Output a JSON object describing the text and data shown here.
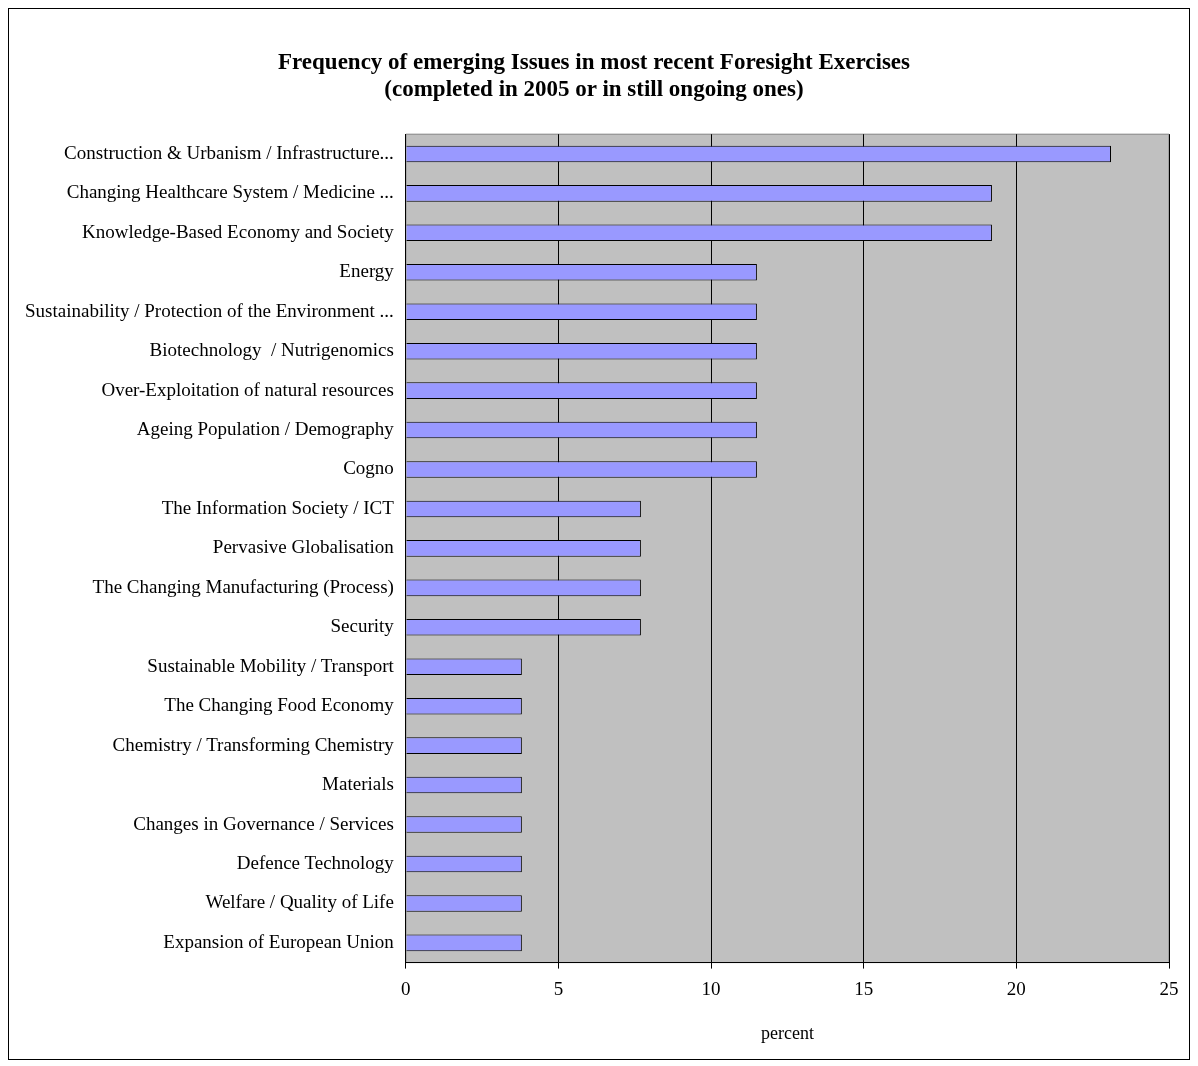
{
  "chart_data": {
    "type": "bar",
    "orientation": "horizontal",
    "title": "Frequency of emerging Issues in most recent Foresight Exercises\n(completed in 2005 or in still ongoing ones)",
    "xlabel": "percent",
    "categories": [
      "Construction & Urbanism / Infrastructure...",
      "Changing Healthcare System / Medicine ...",
      "Knowledge-Based Economy and Society",
      "Energy",
      "Sustainability / Protection of the Environment ...",
      "Biotechnology  / Nutrigenomics",
      "Over-Exploitation of natural resources",
      "Ageing Population / Demography",
      "Cogno",
      "The Information Society / ICT",
      "Pervasive Globalisation",
      "The Changing Manufacturing (Process)",
      "Security",
      "Sustainable Mobility / Transport",
      "The Changing Food Economy",
      "Chemistry / Transforming Chemistry",
      "Materials",
      "Changes in Governance / Services",
      "Defence Technology",
      "Welfare / Quality of Life",
      "Expansion of European Union"
    ],
    "values": [
      23.1,
      19.2,
      19.2,
      11.5,
      11.5,
      11.5,
      11.5,
      11.5,
      11.5,
      7.7,
      7.7,
      7.7,
      7.7,
      3.8,
      3.8,
      3.8,
      3.8,
      3.8,
      3.8,
      3.8,
      3.8
    ],
    "color": "#9999ff",
    "xlim": [
      0,
      25
    ],
    "xticks": [
      0,
      5,
      10,
      15,
      20,
      25
    ],
    "grid": "x",
    "legend": false
  }
}
